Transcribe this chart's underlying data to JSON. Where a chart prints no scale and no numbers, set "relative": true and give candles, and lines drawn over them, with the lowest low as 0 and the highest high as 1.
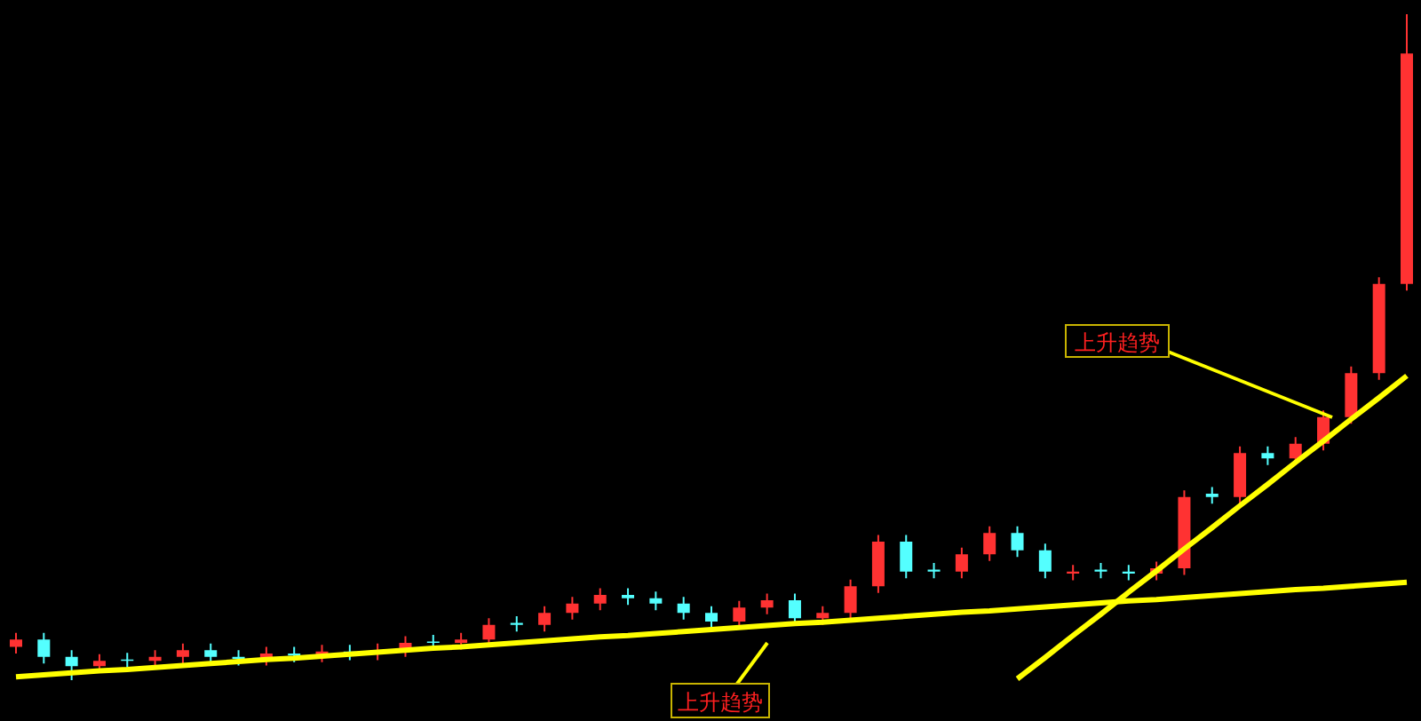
{
  "chart_data": {
    "type": "candlestick",
    "relative": true,
    "categories": [
      null,
      null,
      null,
      null,
      null,
      null,
      null,
      null,
      null,
      null,
      null,
      null,
      null,
      null,
      null,
      null,
      null,
      null,
      null,
      null,
      null,
      null,
      null,
      null,
      null,
      null,
      null,
      null,
      null,
      null,
      null,
      null,
      null,
      null,
      null,
      null,
      null,
      null,
      null,
      null,
      null,
      null,
      null,
      null,
      null,
      null,
      null,
      null,
      null,
      null,
      null
    ],
    "ohlc": [
      [
        0.05,
        0.071,
        0.04,
        0.061
      ],
      [
        0.061,
        0.071,
        0.025,
        0.035
      ],
      [
        0.035,
        0.045,
        0,
        0.021
      ],
      [
        0.021,
        0.039,
        0.011,
        0.029
      ],
      [
        0.031,
        0.041,
        0.019,
        0.029
      ],
      [
        0.029,
        0.045,
        0.019,
        0.035
      ],
      [
        0.035,
        0.055,
        0.025,
        0.045
      ],
      [
        0.045,
        0.055,
        0.025,
        0.035
      ],
      [
        0.035,
        0.045,
        0.022,
        0.032
      ],
      [
        0.032,
        0.05,
        0.022,
        0.04
      ],
      [
        0.04,
        0.05,
        0.027,
        0.037
      ],
      [
        0.037,
        0.053,
        0.027,
        0.043
      ],
      [
        0.043,
        0.053,
        0.03,
        0.04
      ],
      [
        0.04,
        0.055,
        0.03,
        0.045
      ],
      [
        0.045,
        0.066,
        0.035,
        0.056
      ],
      [
        0.058,
        0.068,
        0.046,
        0.056
      ],
      [
        0.056,
        0.071,
        0.046,
        0.061
      ],
      [
        0.061,
        0.093,
        0.051,
        0.083
      ],
      [
        0.086,
        0.096,
        0.073,
        0.083
      ],
      [
        0.083,
        0.111,
        0.073,
        0.101
      ],
      [
        0.101,
        0.125,
        0.091,
        0.115
      ],
      [
        0.115,
        0.138,
        0.105,
        0.128
      ],
      [
        0.128,
        0.138,
        0.113,
        0.123
      ],
      [
        0.123,
        0.133,
        0.105,
        0.115
      ],
      [
        0.115,
        0.125,
        0.091,
        0.101
      ],
      [
        0.101,
        0.111,
        0.078,
        0.088
      ],
      [
        0.088,
        0.119,
        0.078,
        0.109
      ],
      [
        0.109,
        0.13,
        0.099,
        0.12
      ],
      [
        0.12,
        0.13,
        0.083,
        0.093
      ],
      [
        0.093,
        0.111,
        0.083,
        0.101
      ],
      [
        0.101,
        0.151,
        0.091,
        0.141
      ],
      [
        0.141,
        0.218,
        0.131,
        0.208
      ],
      [
        0.208,
        0.218,
        0.153,
        0.163
      ],
      [
        0.166,
        0.176,
        0.153,
        0.163
      ],
      [
        0.163,
        0.199,
        0.153,
        0.189
      ],
      [
        0.189,
        0.231,
        0.179,
        0.221
      ],
      [
        0.221,
        0.231,
        0.185,
        0.195
      ],
      [
        0.195,
        0.205,
        0.153,
        0.163
      ],
      [
        0.16,
        0.173,
        0.15,
        0.163
      ],
      [
        0.166,
        0.176,
        0.153,
        0.163
      ],
      [
        0.163,
        0.173,
        0.15,
        0.16
      ],
      [
        0.16,
        0.178,
        0.15,
        0.168
      ],
      [
        0.168,
        0.285,
        0.158,
        0.275
      ],
      [
        0.28,
        0.29,
        0.265,
        0.275
      ],
      [
        0.275,
        0.351,
        0.265,
        0.341
      ],
      [
        0.341,
        0.351,
        0.323,
        0.333
      ],
      [
        0.333,
        0.365,
        0.323,
        0.355
      ],
      [
        0.355,
        0.405,
        0.345,
        0.395
      ],
      [
        0.395,
        0.471,
        0.385,
        0.461
      ],
      [
        0.461,
        0.605,
        0.451,
        0.595
      ],
      [
        0.595,
        1,
        0.585,
        0.941
      ]
    ],
    "colors": [
      "#ff3232",
      "#54ffff",
      "#54ffff",
      "#ff3232",
      "#54ffff",
      "#ff3232",
      "#ff3232",
      "#54ffff",
      "#54ffff",
      "#ff3232",
      "#54ffff",
      "#ff3232",
      "#54ffff",
      "#ff3232",
      "#ff3232",
      "#54ffff",
      "#ff3232",
      "#ff3232",
      "#54ffff",
      "#ff3232",
      "#ff3232",
      "#ff3232",
      "#54ffff",
      "#54ffff",
      "#54ffff",
      "#54ffff",
      "#ff3232",
      "#ff3232",
      "#54ffff",
      "#ff3232",
      "#ff3232",
      "#ff3232",
      "#54ffff",
      "#54ffff",
      "#ff3232",
      "#ff3232",
      "#54ffff",
      "#54ffff",
      "#ff3232",
      "#54ffff",
      "#54ffff",
      "#ff3232",
      "#ff3232",
      "#54ffff",
      "#ff3232",
      "#54ffff",
      "#ff3232",
      "#ff3232",
      "#ff3232",
      "#ff3232",
      "#ff3232"
    ],
    "series": [
      {
        "type": "line",
        "color": "#ffff00",
        "values": [
          0.005,
          0.008,
          0.011,
          0.014,
          0.016,
          0.019,
          0.022,
          0.025,
          0.028,
          0.031,
          0.033,
          0.036,
          0.039,
          0.042,
          0.045,
          0.048,
          0.05,
          0.053,
          0.056,
          0.059,
          0.062,
          0.065,
          0.067,
          0.07,
          0.073,
          0.076,
          0.079,
          0.082,
          0.085,
          0.087,
          0.09,
          0.093,
          0.096,
          0.099,
          0.102,
          0.104,
          0.107,
          0.11,
          0.113,
          0.116,
          0.119,
          0.121,
          0.124,
          0.127,
          0.13,
          0.133,
          0.136,
          0.138,
          0.141,
          0.144,
          0.147
        ]
      },
      {
        "type": "line",
        "color": "#ffff00",
        "values": [
          null,
          null,
          null,
          null,
          null,
          null,
          null,
          null,
          null,
          null,
          null,
          null,
          null,
          null,
          null,
          null,
          null,
          null,
          null,
          null,
          null,
          null,
          null,
          null,
          null,
          null,
          null,
          null,
          null,
          null,
          null,
          null,
          null,
          null,
          null,
          null,
          0.002,
          0.034,
          0.067,
          0.099,
          0.132,
          0.164,
          0.197,
          0.229,
          0.262,
          0.294,
          0.327,
          0.359,
          0.392,
          0.424,
          0.457
        ]
      }
    ],
    "annotations": [
      "上升趋势",
      "上升趋势"
    ]
  }
}
